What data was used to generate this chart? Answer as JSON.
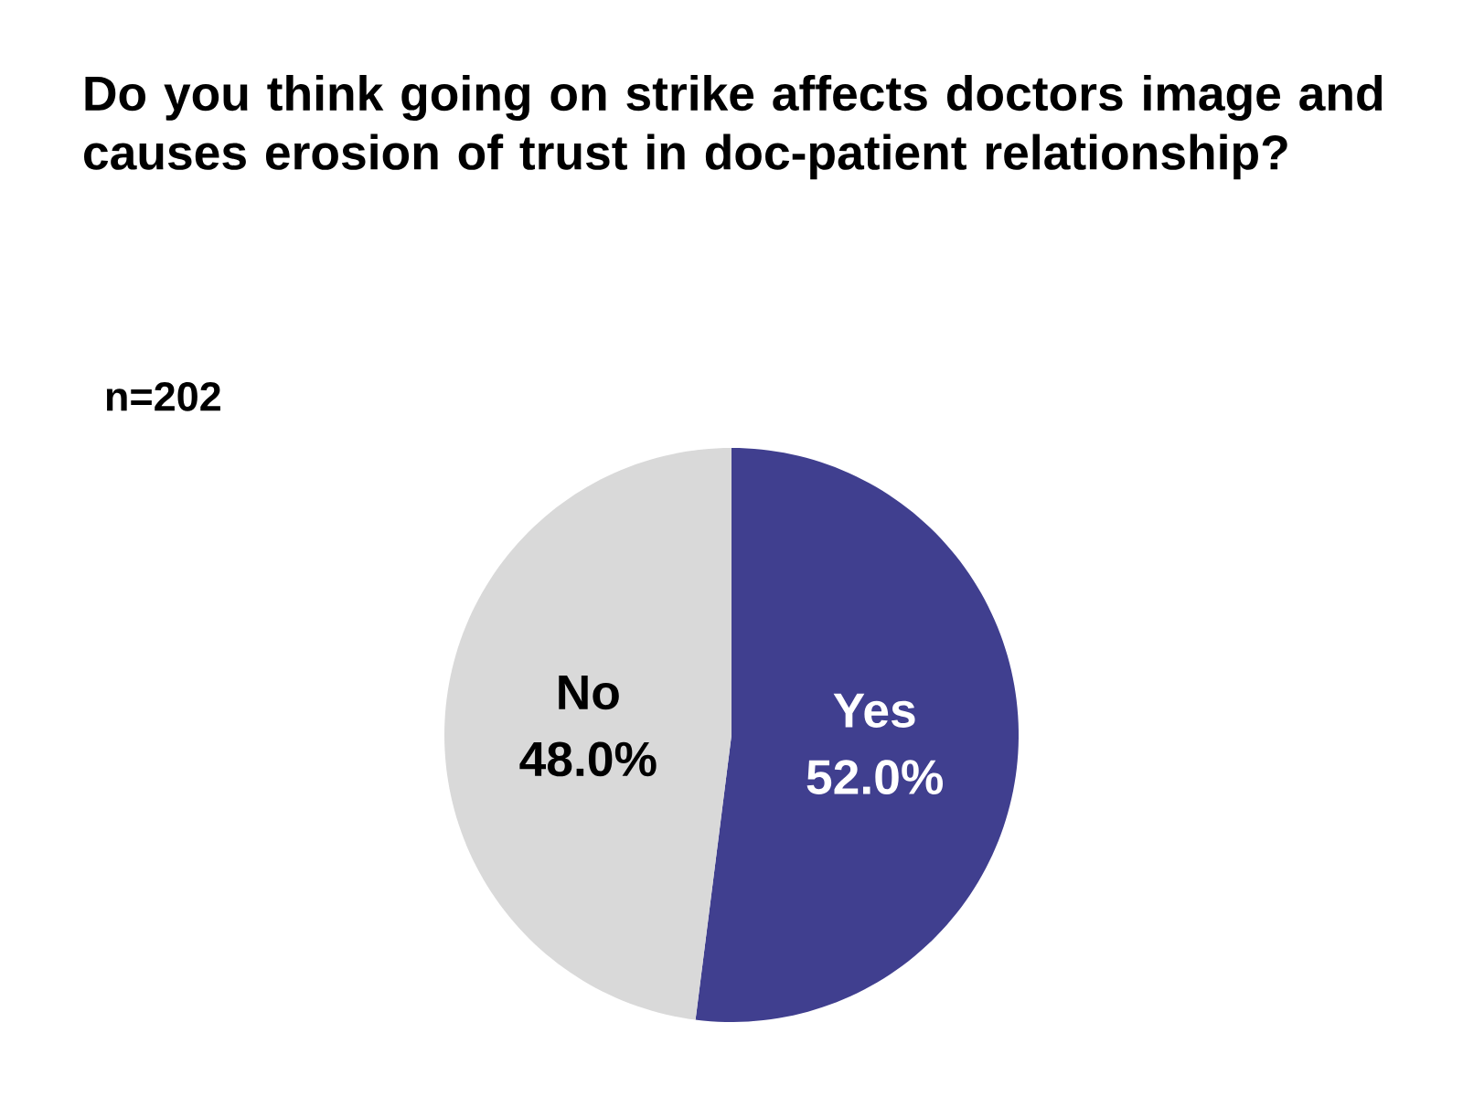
{
  "chart_data": {
    "type": "pie",
    "title": "Do you think going on strike affects doctors image and causes erosion of trust in doc-patient relationship?",
    "annotations": [
      "n=202"
    ],
    "categories": [
      "Yes",
      "No"
    ],
    "values": [
      52.0,
      48.0
    ],
    "colors": [
      "#403f8f",
      "#d9d9d9"
    ],
    "value_labels": [
      "52.0%",
      "48.0%"
    ]
  }
}
